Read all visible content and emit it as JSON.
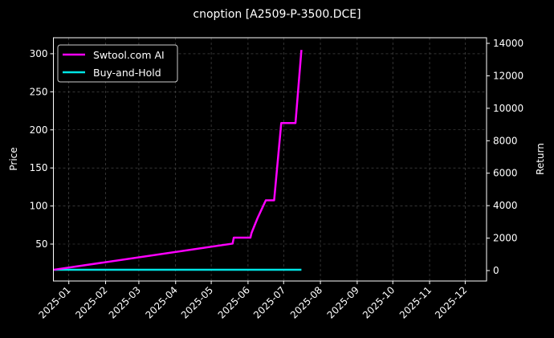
{
  "chart_data": {
    "type": "line",
    "title": "cnoption [A2509-P-3500.DCE]",
    "ylabel": "Price",
    "y2label": "Return",
    "xlim": [
      "2024-12-19",
      "2025-12-19"
    ],
    "ylim": [
      1.5,
      321
    ],
    "y2lim": [
      -643,
      14346
    ],
    "xticks": [
      "2025-01",
      "2025-02",
      "2025-03",
      "2025-04",
      "2025-05",
      "2025-06",
      "2025-07",
      "2025-08",
      "2025-09",
      "2025-10",
      "2025-11",
      "2025-12"
    ],
    "yticks": [
      50,
      100,
      150,
      200,
      250,
      300
    ],
    "y2ticks": [
      0,
      2000,
      4000,
      6000,
      8000,
      10000,
      12000,
      14000
    ],
    "grid": true,
    "legend_position": "upper-left",
    "series": [
      {
        "name": "Swtool.com AI",
        "color": "#ff00ff",
        "x": [
          "2024-12-19",
          "2025-05-19",
          "2025-05-20",
          "2025-06-03",
          "2025-06-04",
          "2025-06-09",
          "2025-06-16",
          "2025-06-23",
          "2025-06-29",
          "2025-07-11",
          "2025-07-16"
        ],
        "y": [
          16.2,
          50.6,
          58.4,
          58.4,
          64.8,
          84,
          107.5,
          107.5,
          209,
          209,
          305
        ]
      },
      {
        "name": "Buy-and-Hold",
        "color": "#00e5e5",
        "x": [
          "2024-12-19",
          "2025-07-16"
        ],
        "y": [
          16.2,
          16.2
        ]
      }
    ]
  }
}
